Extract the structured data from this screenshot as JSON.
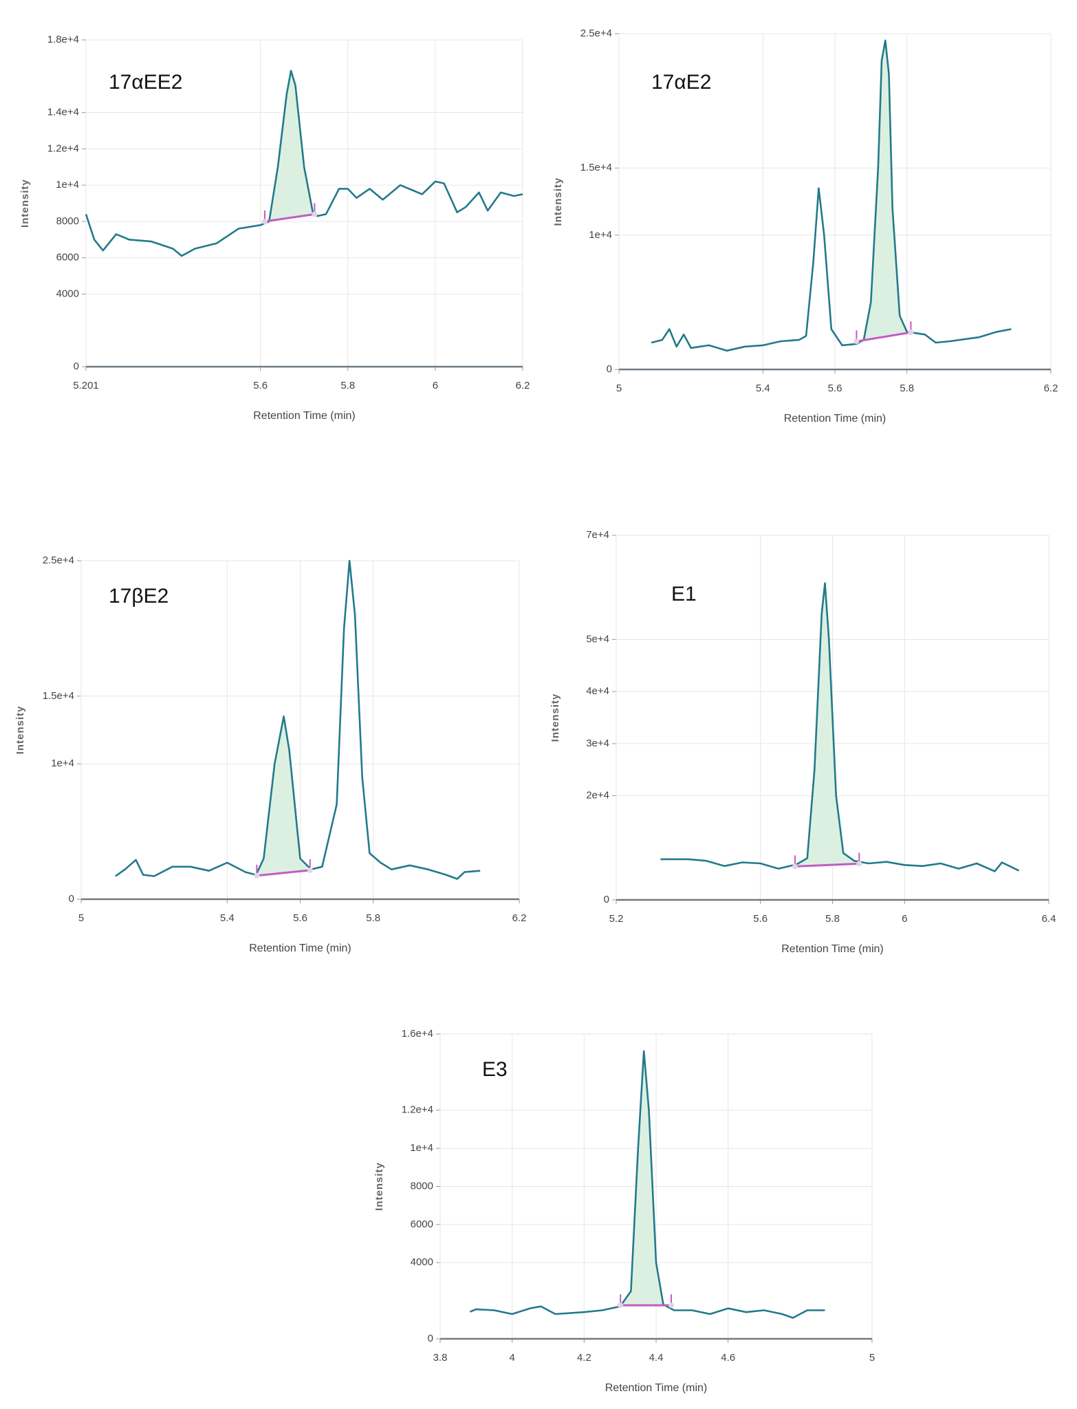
{
  "chart_data": [
    {
      "type": "line",
      "label": "17αEE2",
      "x_label": "Retention Time (min)",
      "y_label": "Intensity",
      "xlim": [
        5.201,
        6.2
      ],
      "xticks": [
        5.201,
        5.6,
        5.8,
        6,
        6.2
      ],
      "ylim": [
        0,
        18000
      ],
      "yticks": [
        0,
        4000,
        6000,
        8000,
        {
          "value": 10000,
          "label": "1e+4"
        },
        {
          "value": 12000,
          "label": "1.2e+4"
        },
        {
          "value": 14000,
          "label": "1.4e+4"
        },
        {
          "value": 18000,
          "label": "1.8e+4"
        }
      ],
      "grid": true,
      "color": "#227a8a",
      "fill_color": "#d8eedf",
      "x": [
        5.201,
        5.22,
        5.24,
        5.27,
        5.3,
        5.35,
        5.4,
        5.42,
        5.45,
        5.5,
        5.55,
        5.6,
        5.62,
        5.64,
        5.66,
        5.67,
        5.68,
        5.7,
        5.72,
        5.73,
        5.75,
        5.78,
        5.8,
        5.82,
        5.85,
        5.88,
        5.92,
        5.95,
        5.97,
        6.0,
        6.02,
        6.05,
        6.07,
        6.1,
        6.12,
        6.15,
        6.18,
        6.2
      ],
      "values": [
        8400,
        7000,
        6400,
        7300,
        7000,
        6900,
        6500,
        6100,
        6500,
        6800,
        7600,
        7800,
        8000,
        11000,
        15000,
        16300,
        15500,
        11000,
        8500,
        8300,
        8400,
        9800,
        9800,
        9300,
        9800,
        9200,
        10000,
        9700,
        9500,
        10200,
        10100,
        8500,
        8800,
        9600,
        8600,
        9600,
        9400,
        9500
      ],
      "baseline": {
        "color": "#c35bc3",
        "x": [
          5.61,
          5.724
        ],
        "values": [
          8000,
          8400
        ]
      }
    },
    {
      "type": "line",
      "label": "17αE2",
      "x_label": "Retention Time (min)",
      "y_label": "Intensity",
      "xlim": [
        5,
        6.2
      ],
      "xticks": [
        5,
        5.4,
        5.6,
        5.8,
        6.2
      ],
      "ylim": [
        0,
        25000
      ],
      "yticks": [
        0,
        {
          "value": 10000,
          "label": "1e+4"
        },
        {
          "value": 15000,
          "label": "1.5e+4"
        },
        {
          "value": 25000,
          "label": "2.5e+4"
        }
      ],
      "grid": true,
      "color": "#227a8a",
      "fill_color": "#d8eedf",
      "x": [
        5.09,
        5.12,
        5.14,
        5.16,
        5.18,
        5.2,
        5.25,
        5.3,
        5.35,
        5.4,
        5.45,
        5.5,
        5.52,
        5.54,
        5.555,
        5.57,
        5.59,
        5.62,
        5.66,
        5.68,
        5.7,
        5.72,
        5.73,
        5.74,
        5.75,
        5.76,
        5.78,
        5.8,
        5.85,
        5.88,
        5.92,
        6.0,
        6.05,
        6.09
      ],
      "values": [
        2000,
        2200,
        3000,
        1700,
        2600,
        1600,
        1800,
        1400,
        1700,
        1800,
        2100,
        2200,
        2500,
        8000,
        13500,
        10000,
        3000,
        1800,
        1900,
        2200,
        5000,
        15000,
        23000,
        24500,
        22000,
        12000,
        4000,
        2800,
        2600,
        2000,
        2100,
        2400,
        2800,
        3000
      ],
      "baseline": {
        "color": "#c35bc3",
        "x": [
          5.66,
          5.811
        ],
        "values": [
          2090,
          2760
        ]
      }
    },
    {
      "type": "line",
      "label": "17βE2",
      "x_label": "Retention Time (min)",
      "y_label": "Intensity",
      "xlim": [
        5,
        6.2
      ],
      "xticks": [
        5,
        5.4,
        5.6,
        5.8,
        6.2
      ],
      "ylim": [
        0,
        25000
      ],
      "yticks": [
        0,
        {
          "value": 10000,
          "label": "1e+4"
        },
        {
          "value": 15000,
          "label": "1.5e+4"
        },
        {
          "value": 25000,
          "label": "2.5e+4"
        }
      ],
      "grid": true,
      "color": "#227a8a",
      "fill_color": "#d8eedf",
      "x": [
        5.094,
        5.12,
        5.15,
        5.17,
        5.2,
        5.25,
        5.3,
        5.35,
        5.4,
        5.45,
        5.479,
        5.5,
        5.53,
        5.555,
        5.57,
        5.6,
        5.63,
        5.66,
        5.7,
        5.72,
        5.735,
        5.75,
        5.77,
        5.79,
        5.82,
        5.85,
        5.9,
        5.95,
        6.0,
        6.03,
        6.05,
        6.093
      ],
      "values": [
        1700,
        2200,
        2900,
        1800,
        1700,
        2400,
        2400,
        2100,
        2700,
        2000,
        1800,
        3000,
        10000,
        13500,
        11000,
        3000,
        2200,
        2400,
        7000,
        20000,
        25000,
        21000,
        9000,
        3400,
        2700,
        2200,
        2500,
        2200,
        1800,
        1500,
        2000,
        2100
      ],
      "baseline": {
        "color": "#c35bc3",
        "x": [
          5.481,
          5.627
        ],
        "values": [
          1740,
          2140
        ]
      }
    },
    {
      "type": "line",
      "label": "E1",
      "x_label": "Retention Time (min)",
      "y_label": "Intensity",
      "xlim": [
        5.2,
        6.4
      ],
      "xticks": [
        5.2,
        5.6,
        5.8,
        6,
        6.4
      ],
      "ylim": [
        0,
        70000
      ],
      "yticks": [
        0,
        {
          "value": 20000,
          "label": "2e+4"
        },
        {
          "value": 30000,
          "label": "3e+4"
        },
        {
          "value": 40000,
          "label": "4e+4"
        },
        {
          "value": 50000,
          "label": "5e+4"
        },
        {
          "value": 70000,
          "label": "7e+4"
        }
      ],
      "grid": true,
      "color": "#227a8a",
      "fill_color": "#d8eedf",
      "x": [
        5.323,
        5.4,
        5.45,
        5.5,
        5.55,
        5.6,
        5.65,
        5.7,
        5.73,
        5.75,
        5.77,
        5.779,
        5.79,
        5.81,
        5.83,
        5.86,
        5.9,
        5.95,
        6.0,
        6.05,
        6.1,
        6.15,
        6.2,
        6.25,
        6.27,
        6.317
      ],
      "values": [
        7800,
        7800,
        7500,
        6500,
        7200,
        7000,
        6000,
        6800,
        8000,
        25000,
        55000,
        60800,
        50000,
        20000,
        9000,
        7500,
        7000,
        7300,
        6700,
        6500,
        7000,
        6000,
        7000,
        5500,
        7200,
        5600
      ],
      "baseline": {
        "color": "#c35bc3",
        "x": [
          5.696,
          5.874
        ],
        "values": [
          6430,
          6950
        ]
      }
    },
    {
      "type": "line",
      "label": "E3",
      "x_label": "Retention Time (min)",
      "y_label": "Intensity",
      "xlim": [
        3.8,
        5
      ],
      "xticks": [
        3.8,
        4,
        4.2,
        4.4,
        4.6,
        5
      ],
      "ylim": [
        0,
        16000
      ],
      "yticks": [
        0,
        4000,
        6000,
        8000,
        {
          "value": 10000,
          "label": "1e+4"
        },
        {
          "value": 12000,
          "label": "1.2e+4"
        },
        {
          "value": 16000,
          "label": "1.6e+4"
        }
      ],
      "grid": true,
      "color": "#227a8a",
      "fill_color": "#d8eedf",
      "x": [
        3.883,
        3.9,
        3.95,
        4.0,
        4.05,
        4.08,
        4.12,
        4.2,
        4.25,
        4.3,
        4.33,
        4.35,
        4.366,
        4.38,
        4.4,
        4.42,
        4.45,
        4.5,
        4.55,
        4.6,
        4.65,
        4.7,
        4.75,
        4.78,
        4.82,
        4.869
      ],
      "values": [
        1420,
        1550,
        1500,
        1300,
        1600,
        1700,
        1300,
        1400,
        1500,
        1700,
        2500,
        10000,
        15100,
        12000,
        4000,
        1800,
        1500,
        1500,
        1300,
        1600,
        1400,
        1500,
        1300,
        1100,
        1500,
        1500
      ],
      "baseline": {
        "color": "#c35bc3",
        "x": [
          4.301,
          4.442
        ],
        "values": [
          1760,
          1760
        ]
      }
    }
  ]
}
